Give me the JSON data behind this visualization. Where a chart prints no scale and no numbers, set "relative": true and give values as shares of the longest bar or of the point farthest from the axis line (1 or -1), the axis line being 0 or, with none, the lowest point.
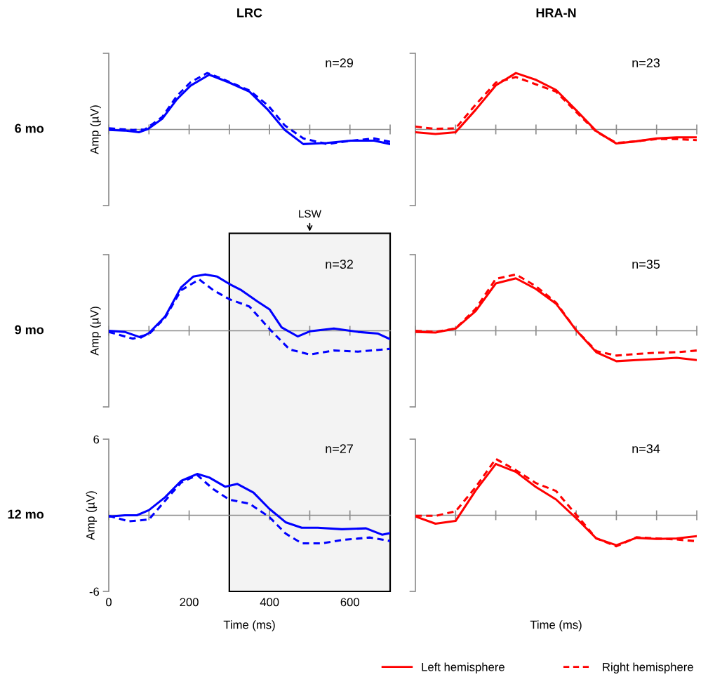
{
  "chart_data": [
    {
      "type": "line",
      "title": "LRC",
      "ylabel": "Amp (µV)",
      "annotations": [
        "n=29",
        "6 mo"
      ],
      "relative": true,
      "xlim": [
        0,
        700
      ],
      "xticks": [
        0,
        {
          "value": 100,
          "label": null
        },
        200,
        {
          "value": 300,
          "label": null
        },
        400,
        {
          "value": 500,
          "label": null
        },
        600,
        {
          "value": 700,
          "label": null
        }
      ],
      "tick_labels": false,
      "series": [
        {
          "color": "#0000ff",
          "line_style": "solid",
          "x": [
            0,
            40,
            75,
            98,
            133,
            169,
            204,
            250,
            297,
            350,
            397,
            438,
            484,
            543,
            602,
            660,
            700
          ],
          "values": [
            -0.01,
            -0.02,
            -0.05,
            0.01,
            0.19,
            0.53,
            0.78,
            0.97,
            0.84,
            0.67,
            0.34,
            -0.01,
            -0.26,
            -0.24,
            -0.2,
            -0.2,
            -0.26
          ]
        },
        {
          "color": "#0000ff",
          "line_style": "dashed",
          "x": [
            0,
            60,
            90,
            133,
            169,
            204,
            245,
            275,
            350,
            397,
            438,
            484,
            543,
            602,
            660,
            700
          ],
          "values": [
            0.02,
            -0.01,
            0,
            0.22,
            0.59,
            0.84,
            1,
            0.92,
            0.69,
            0.42,
            0.07,
            -0.16,
            -0.26,
            -0.2,
            -0.16,
            -0.22
          ]
        }
      ]
    },
    {
      "type": "line",
      "title": "HRA-N",
      "annotations": [
        "n=23"
      ],
      "relative": true,
      "categories": [
        null,
        null,
        null,
        null,
        null,
        null,
        null,
        null,
        null,
        null,
        null,
        null,
        null,
        null,
        null
      ],
      "tick_labels": false,
      "series": [
        {
          "color": "#ff0000",
          "line_style": "solid",
          "values": [
            -0.05,
            -0.08,
            -0.05,
            0.35,
            0.78,
            1,
            0.88,
            0.7,
            0.34,
            -0.03,
            -0.25,
            -0.21,
            -0.16,
            -0.14,
            -0.14
          ]
        },
        {
          "color": "#ff0000",
          "line_style": "dashed",
          "values": [
            0.05,
            0.01,
            0.02,
            0.44,
            0.83,
            0.93,
            0.8,
            0.67,
            0.31,
            -0.04,
            -0.24,
            -0.21,
            -0.17,
            -0.17,
            -0.19
          ]
        }
      ]
    },
    {
      "type": "line",
      "ylabel": "Amp (µV)",
      "annotations": [
        "n=32",
        "9 mo"
      ],
      "relative": true,
      "xlim": [
        0,
        700
      ],
      "xticks": [
        0,
        {
          "value": 100,
          "label": null
        },
        200,
        {
          "value": 300,
          "label": null
        },
        400,
        {
          "value": 500,
          "label": null
        },
        600,
        {
          "value": 700,
          "label": null
        }
      ],
      "tick_labels": false,
      "bands": [
        {
          "axis": "x",
          "from": 300,
          "to": 700,
          "label": "LSW",
          "color": "#f3f3f3"
        }
      ],
      "series": [
        {
          "color": "#0000ff",
          "line_style": "solid",
          "x": [
            0,
            40,
            80,
            100,
            140,
            180,
            210,
            240,
            270,
            300,
            330,
            370,
            400,
            430,
            470,
            500,
            560,
            620,
            670,
            700
          ],
          "values": [
            0,
            -0.02,
            -0.12,
            -0.04,
            0.25,
            0.77,
            0.96,
            1,
            0.96,
            0.83,
            0.72,
            0.52,
            0.38,
            0.06,
            -0.1,
            -0.01,
            0.04,
            -0.02,
            -0.05,
            -0.15
          ]
        },
        {
          "color": "#0000ff",
          "line_style": "dashed",
          "x": [
            0,
            60,
            100,
            140,
            180,
            225,
            260,
            300,
            350,
            400,
            450,
            500,
            560,
            620,
            700
          ],
          "values": [
            -0.02,
            -0.14,
            -0.06,
            0.23,
            0.72,
            0.91,
            0.72,
            0.56,
            0.43,
            0.03,
            -0.33,
            -0.42,
            -0.35,
            -0.37,
            -0.32
          ]
        }
      ]
    },
    {
      "type": "line",
      "annotations": [
        "n=35"
      ],
      "relative": true,
      "categories": [
        null,
        null,
        null,
        null,
        null,
        null,
        null,
        null,
        null,
        null,
        null,
        null,
        null,
        null,
        null
      ],
      "tick_labels": false,
      "series": [
        {
          "color": "#ff0000",
          "line_style": "solid",
          "values": [
            -0.02,
            -0.03,
            0.04,
            0.35,
            0.84,
            0.93,
            0.74,
            0.48,
            0.01,
            -0.38,
            -0.54,
            -0.52,
            -0.5,
            -0.48,
            -0.52
          ]
        },
        {
          "color": "#ff0000",
          "line_style": "dashed",
          "values": [
            0,
            -0.02,
            0.04,
            0.39,
            0.92,
            1,
            0.79,
            0.5,
            0.01,
            -0.36,
            -0.44,
            -0.41,
            -0.39,
            -0.38,
            -0.35
          ]
        }
      ]
    },
    {
      "type": "line",
      "xlabel": "Time (ms)",
      "ylabel": "Amp (µV)",
      "annotations": [
        "n=27",
        "12 mo"
      ],
      "xlim": [
        0,
        700
      ],
      "ylim": [
        -6,
        6
      ],
      "xticks": [
        0,
        {
          "value": 100,
          "label": null
        },
        200,
        {
          "value": 300,
          "label": null
        },
        400,
        {
          "value": 500,
          "label": null
        },
        600,
        {
          "value": 700,
          "label": null
        }
      ],
      "yticks": [
        -6,
        6
      ],
      "bands": [
        {
          "axis": "x",
          "from": 300,
          "to": 700,
          "color": "#f3f3f3"
        }
      ],
      "series": [
        {
          "color": "#0000ff",
          "line_style": "solid",
          "x": [
            0,
            40,
            70,
            100,
            140,
            180,
            220,
            250,
            290,
            320,
            360,
            400,
            440,
            480,
            520,
            580,
            640,
            680,
            700
          ],
          "values": [
            -0.11,
            0,
            0,
            0.41,
            1.42,
            2.71,
            3.26,
            2.98,
            2.25,
            2.47,
            1.79,
            0.5,
            -0.55,
            -0.98,
            -0.98,
            -1.1,
            -1.03,
            -1.53,
            -1.4
          ]
        },
        {
          "color": "#0000ff",
          "line_style": "dashed",
          "x": [
            0,
            50,
            100,
            140,
            180,
            220,
            260,
            300,
            350,
            400,
            440,
            480,
            530,
            580,
            650,
            700
          ],
          "values": [
            -0.04,
            -0.48,
            -0.33,
            1.14,
            2.58,
            3.17,
            2.06,
            1.23,
            0.92,
            -0.15,
            -1.44,
            -2.21,
            -2.21,
            -1.95,
            -1.75,
            -2.03
          ]
        }
      ]
    },
    {
      "type": "line",
      "xlabel": "Time (ms)",
      "annotations": [
        "n=34"
      ],
      "relative": true,
      "categories": [
        null,
        null,
        null,
        null,
        null,
        null,
        null,
        null,
        null,
        null,
        null,
        null,
        null,
        null,
        null
      ],
      "tick_labels": false,
      "legend": "bottom",
      "series": [
        {
          "name": "Left hemisphere",
          "color": "#ff0000",
          "line_style": "solid",
          "values": [
            -0.02,
            -0.15,
            -0.1,
            0.44,
            0.91,
            0.77,
            0.5,
            0.28,
            -0.05,
            -0.41,
            -0.53,
            -0.4,
            -0.42,
            -0.41,
            -0.37
          ]
        },
        {
          "name": "Right hemisphere",
          "color": "#ff0000",
          "line_style": "dashed",
          "values": [
            -0.01,
            -0.01,
            0.07,
            0.5,
            1,
            0.8,
            0.57,
            0.43,
            0.01,
            -0.41,
            -0.55,
            -0.39,
            -0.41,
            -0.43,
            -0.46
          ]
        }
      ]
    }
  ]
}
